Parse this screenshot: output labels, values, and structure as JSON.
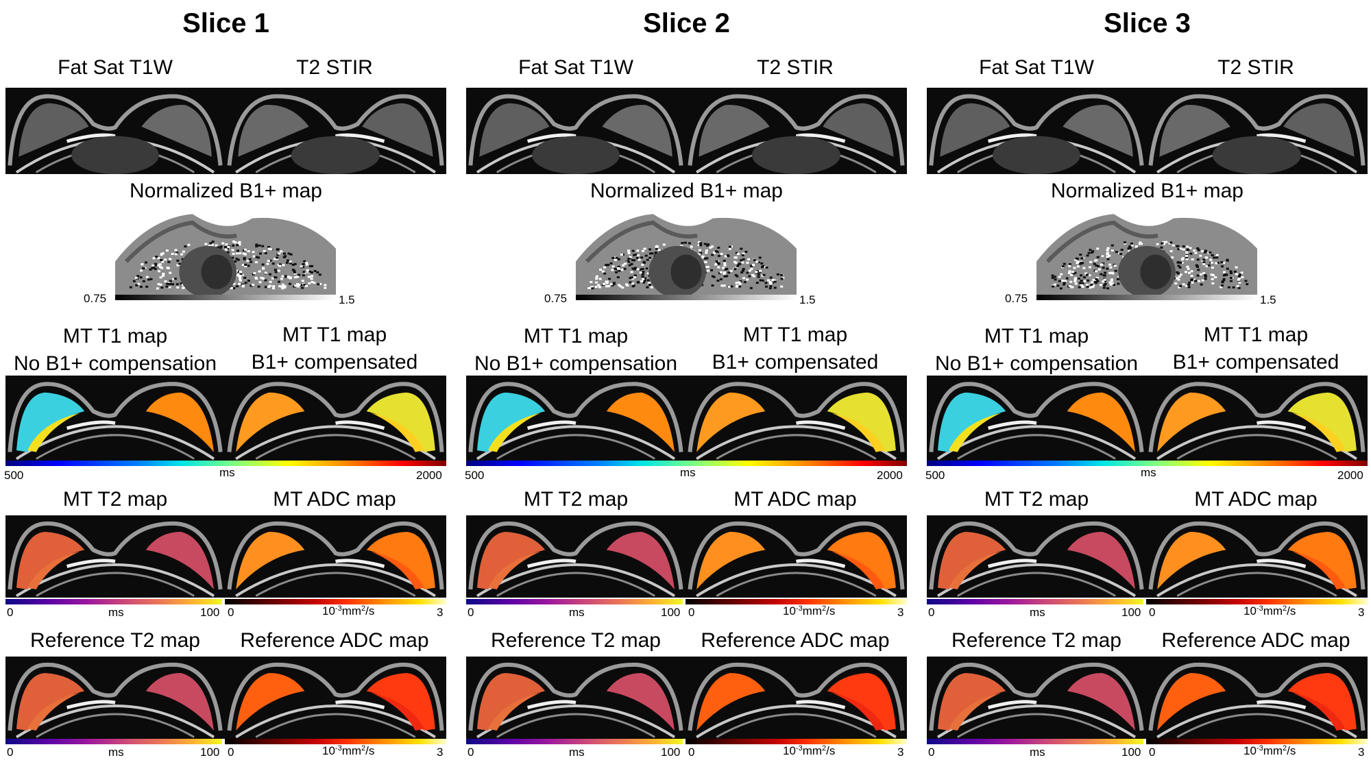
{
  "slices": [
    {
      "title": "Slice 1",
      "fat_sat_label": "Fat Sat T1W",
      "t2_stir_label": "T2 STIR",
      "b1_label": "Normalized B1+ map",
      "b1_min": "0.75",
      "b1_max": "1.5",
      "t1_nocomp_label_1": "MT T1 map",
      "t1_nocomp_label_2": "No B1+ compensation",
      "t1_comp_label_1": "MT T1 map",
      "t1_comp_label_2": "B1+ compensated",
      "t1_min": "500",
      "t1_unit": "ms",
      "t1_max": "2000",
      "mt_t2_label": "MT T2 map",
      "mt_adc_label": "MT ADC map",
      "ref_t2_label": "Reference T2 map",
      "ref_adc_label": "Reference ADC map",
      "t2_min": "0",
      "t2_unit": "ms",
      "t2_max": "100",
      "adc_min": "0",
      "adc_unit_base": "10",
      "adc_unit_exp": "-3",
      "adc_unit_rest": "mm",
      "adc_unit_sq": "2",
      "adc_unit_tail": "/s",
      "adc_max": "3"
    },
    {
      "title": "Slice 2",
      "fat_sat_label": "Fat Sat T1W",
      "t2_stir_label": "T2 STIR",
      "b1_label": "Normalized B1+ map",
      "b1_min": "0.75",
      "b1_max": "1.5",
      "t1_nocomp_label_1": "MT T1 map",
      "t1_nocomp_label_2": "No B1+ compensation",
      "t1_comp_label_1": "MT T1 map",
      "t1_comp_label_2": "B1+ compensated",
      "t1_min": "500",
      "t1_unit": "ms",
      "t1_max": "2000",
      "mt_t2_label": "MT T2 map",
      "mt_adc_label": "MT ADC map",
      "ref_t2_label": "Reference T2 map",
      "ref_adc_label": "Reference ADC map",
      "t2_min": "0",
      "t2_unit": "ms",
      "t2_max": "100",
      "adc_min": "0",
      "adc_unit_base": "10",
      "adc_unit_exp": "-3",
      "adc_unit_rest": "mm",
      "adc_unit_sq": "2",
      "adc_unit_tail": "/s",
      "adc_max": "3"
    },
    {
      "title": "Slice 3",
      "fat_sat_label": "Fat Sat T1W",
      "t2_stir_label": "T2 STIR",
      "b1_label": "Normalized B1+ map",
      "b1_min": "0.75",
      "b1_max": "1.5",
      "t1_nocomp_label_1": "MT T1 map",
      "t1_nocomp_label_2": "No B1+ compensation",
      "t1_comp_label_1": "MT T1 map",
      "t1_comp_label_2": "B1+ compensated",
      "t1_min": "500",
      "t1_unit": "ms",
      "t1_max": "2000",
      "mt_t2_label": "MT T2 map",
      "mt_adc_label": "MT ADC map",
      "ref_t2_label": "Reference T2 map",
      "ref_adc_label": "Reference ADC map",
      "t2_min": "0",
      "t2_unit": "ms",
      "t2_max": "100",
      "adc_min": "0",
      "adc_unit_base": "10",
      "adc_unit_exp": "-3",
      "adc_unit_rest": "mm",
      "adc_unit_sq": "2",
      "adc_unit_tail": "/s",
      "adc_max": "3"
    }
  ],
  "colormaps": {
    "b1": "gray",
    "t1": "jet",
    "t2": "plasma",
    "adc": "hot"
  },
  "colors": {
    "background": "#ffffff",
    "panel_background": "#0b0b0b",
    "text": "#000000"
  }
}
